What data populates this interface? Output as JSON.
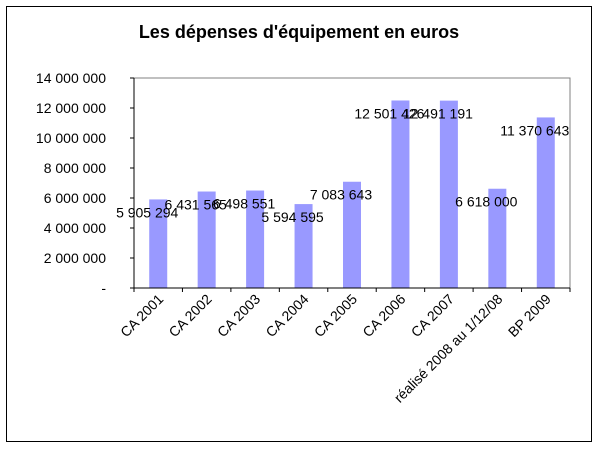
{
  "chart_data": {
    "type": "bar",
    "title": "Les dépenses d'équipement en euros",
    "xlabel": "",
    "ylabel": "",
    "categories": [
      "CA 2001",
      "CA 2002",
      "CA 2003",
      "CA 2004",
      "CA 2005",
      "CA 2006",
      "CA 2007",
      "réalisé 2008 au 1/12/08",
      "BP 2009"
    ],
    "values": [
      5905294,
      6431565,
      6498551,
      5594595,
      7083643,
      12501426,
      12491191,
      6618000,
      11370643
    ],
    "data_labels": [
      "5 905 294",
      "6 431 565",
      "6 498 551",
      "5 594 595",
      "7 083 643",
      "12 501 426",
      "12 491 191",
      "6 618 000",
      "11 370 643"
    ],
    "ylim": [
      0,
      14000000
    ],
    "yticks": [
      0,
      2000000,
      4000000,
      6000000,
      8000000,
      10000000,
      12000000,
      14000000
    ],
    "ytick_labels": [
      "-",
      "2 000 000",
      "4 000 000",
      "6 000 000",
      "8 000 000",
      "10 000 000",
      "12 000 000",
      "14 000 000"
    ],
    "grid": false,
    "legend": "none",
    "colors": {
      "bar_fill": "#9999ff",
      "plot_border": "#808080",
      "axis": "#000000",
      "background": "#ffffff"
    }
  }
}
